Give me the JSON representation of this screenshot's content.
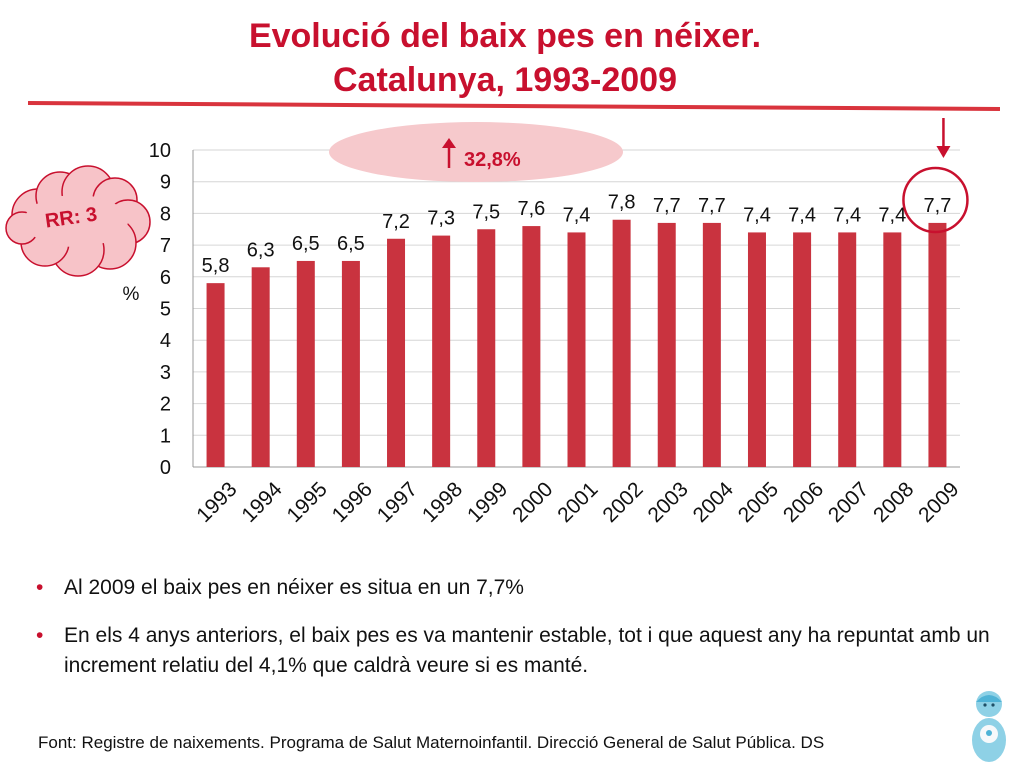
{
  "title": {
    "line1": "Evolució del baix pes en néixer.",
    "line2": "Catalunya, 1993-2009"
  },
  "chart_data": {
    "type": "bar",
    "categories": [
      "1993",
      "1994",
      "1995",
      "1996",
      "1997",
      "1998",
      "1999",
      "2000",
      "2001",
      "2002",
      "2003",
      "2004",
      "2005",
      "2006",
      "2007",
      "2008",
      "2009"
    ],
    "values": [
      5.8,
      6.3,
      6.5,
      6.5,
      7.2,
      7.3,
      7.5,
      7.6,
      7.4,
      7.8,
      7.7,
      7.7,
      7.4,
      7.4,
      7.4,
      7.4,
      7.7
    ],
    "data_labels": [
      "5,8",
      "6,3",
      "6,5",
      "6,5",
      "7,2",
      "7,3",
      "7,5",
      "7,6",
      "7,4",
      "7,8",
      "7,7",
      "7,7",
      "7,4",
      "7,4",
      "7,4",
      "7,4",
      "7,7"
    ],
    "ylabel": "%",
    "ylim": [
      0,
      10
    ],
    "yticks": [
      "0",
      "1",
      "2",
      "3",
      "4",
      "5",
      "6",
      "7",
      "8",
      "9",
      "10"
    ],
    "grid": true,
    "bar_color": "#c9333f",
    "annotations": {
      "increase": "32,8%",
      "rr": "RR: 3",
      "highlight_category": "2009"
    }
  },
  "bullets": [
    "Al 2009 el baix pes en néixer es situa en un 7,7%",
    "En els 4 anys anteriors, el baix pes es va mantenir estable, tot i que aquest any ha repuntat amb un increment relatiu del 4,1% que caldrà veure si es manté."
  ],
  "source": "Font: Registre de naixements. Programa de Salut Maternoinfantil. Direcció General de Salut Pública. DS",
  "colors": {
    "accent": "#c8102e",
    "bar": "#c9333f",
    "ellipse_fill": "#f6c9cc",
    "cloud_fill": "#f7c3c8",
    "grid": "#d6d6d6"
  }
}
